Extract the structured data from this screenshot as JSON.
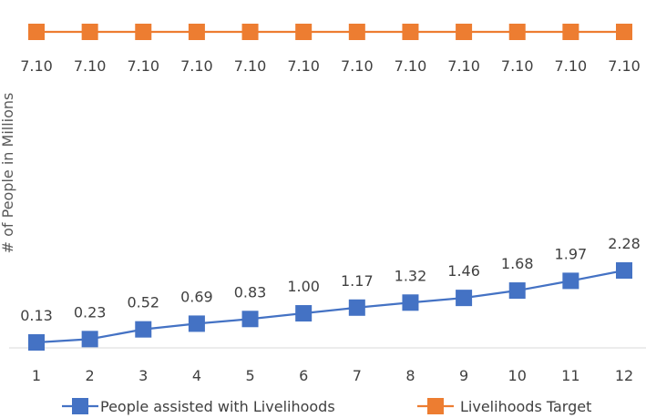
{
  "chart_data": {
    "type": "line",
    "title": "",
    "xlabel": "",
    "ylabel": "# of People in Millions",
    "categories": [
      "1",
      "2",
      "3",
      "4",
      "5",
      "6",
      "7",
      "8",
      "9",
      "10",
      "11",
      "12"
    ],
    "series": [
      {
        "name": "People assisted with Livelihoods",
        "color": "#4472C4",
        "values": [
          0.13,
          0.23,
          0.52,
          0.69,
          0.83,
          1.0,
          1.17,
          1.32,
          1.46,
          1.68,
          1.97,
          2.28
        ],
        "labels": [
          "0.13",
          "0.23",
          "0.52",
          "0.69",
          "0.83",
          "1.00",
          "1.17",
          "1.32",
          "1.46",
          "1.68",
          "1.97",
          "2.28"
        ]
      },
      {
        "name": "Livelihoods Target",
        "color": "#ED7D31",
        "values": [
          7.1,
          7.1,
          7.1,
          7.1,
          7.1,
          7.1,
          7.1,
          7.1,
          7.1,
          7.1,
          7.1,
          7.1
        ],
        "labels": [
          "7.10",
          "7.10",
          "7.10",
          "7.10",
          "7.10",
          "7.10",
          "7.10",
          "7.10",
          "7.10",
          "7.10",
          "7.10",
          "7.10"
        ]
      }
    ],
    "ylim": [
      0,
      7.5
    ],
    "grid": false,
    "legend": "bottom"
  }
}
